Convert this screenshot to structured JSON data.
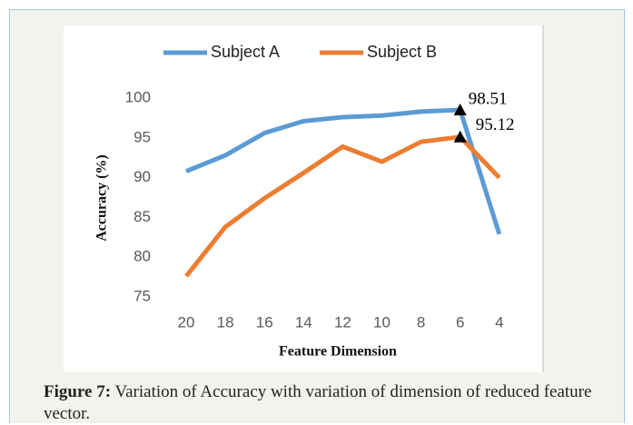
{
  "chart_data": {
    "type": "line",
    "x_label": "Feature Dimension",
    "y_label": "Accuracy (%)",
    "categories": [
      "20",
      "18",
      "16",
      "14",
      "12",
      "10",
      "8",
      "6",
      "4"
    ],
    "series": [
      {
        "name": "Subject A",
        "color": "#5b9bd5",
        "values": [
          90.8,
          92.8,
          95.6,
          97.1,
          97.6,
          97.8,
          98.3,
          98.51,
          82.9
        ],
        "value_labels": [
          null,
          null,
          null,
          null,
          null,
          null,
          null,
          "98.51",
          null
        ]
      },
      {
        "name": "Subject B",
        "color": "#ed7d31",
        "values": [
          77.6,
          83.8,
          87.4,
          90.6,
          93.9,
          92.0,
          94.5,
          95.12,
          90.0
        ],
        "value_labels": [
          null,
          null,
          null,
          null,
          null,
          null,
          null,
          "95.12",
          null
        ]
      }
    ],
    "ylim": [
      75,
      100
    ],
    "yticks": [
      75,
      80,
      85,
      90,
      95,
      100
    ],
    "grid": false,
    "legend": "top"
  },
  "caption": {
    "label": "Figure 7:",
    "text": "Variation of Accuracy with variation of dimension of reduced feature vector."
  }
}
